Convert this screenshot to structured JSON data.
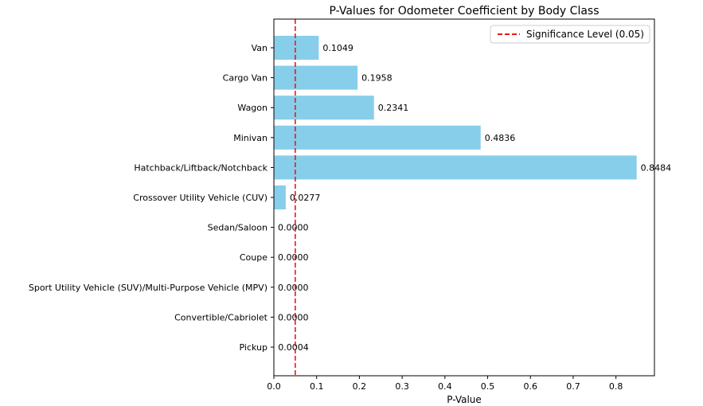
{
  "chart_data": {
    "type": "bar",
    "orientation": "horizontal",
    "title": "P-Values for Odometer Coefficient by Body Class",
    "xlabel": "P-Value",
    "ylabel": "",
    "xlim": [
      0,
      0.89
    ],
    "xticks": [
      "0.0",
      "0.1",
      "0.2",
      "0.3",
      "0.4",
      "0.5",
      "0.6",
      "0.7",
      "0.8"
    ],
    "categories": [
      "Van",
      "Cargo Van",
      "Wagon",
      "Minivan",
      "Hatchback/Liftback/Notchback",
      "Crossover Utility Vehicle (CUV)",
      "Sedan/Saloon",
      "Coupe",
      "Sport Utility Vehicle (SUV)/Multi-Purpose Vehicle (MPV)",
      "Convertible/Cabriolet",
      "Pickup"
    ],
    "values": [
      0.1049,
      0.1958,
      0.2341,
      0.4836,
      0.8484,
      0.0277,
      0.0,
      0.0,
      0.0,
      0.0,
      0.0004
    ],
    "value_labels": [
      "0.1049",
      "0.1958",
      "0.2341",
      "0.4836",
      "0.8484",
      "0.0277",
      "0.0000",
      "0.0000",
      "0.0000",
      "0.0000",
      "0.0004"
    ],
    "reference_line": {
      "x": 0.05,
      "label": "Significance Level (0.05)",
      "style": "dashed",
      "color": "#e41a1c"
    },
    "bar_color": "#87ceeb",
    "grid": false,
    "legend": {
      "position": "upper right",
      "entries": [
        "Significance Level (0.05)"
      ]
    }
  }
}
